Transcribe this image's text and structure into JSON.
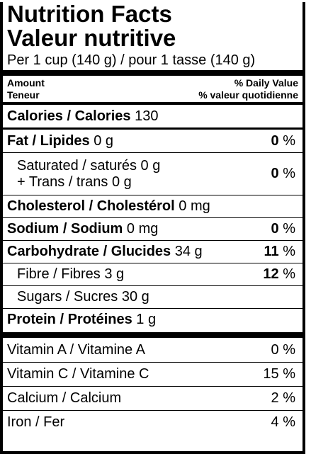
{
  "title_en": "Nutrition Facts",
  "title_fr": "Valeur nutritive",
  "serving": "Per 1 cup (140 g) / pour 1 tasse (140 g)",
  "header": {
    "amount_en": "Amount",
    "amount_fr": "Teneur",
    "dv_en": "% Daily Value",
    "dv_fr": "% valeur quotidienne"
  },
  "calories": {
    "label": "Calories / Calories",
    "value": "130"
  },
  "nutrients": {
    "fat": {
      "label": "Fat / Lipides",
      "amount": "0 g",
      "pct": "0",
      "unit": "%"
    },
    "saturated": {
      "label": "Saturated / saturés",
      "amount": "0 g"
    },
    "trans": {
      "label": "+ Trans / trans",
      "amount": "0 g",
      "pct": "0",
      "unit": "%"
    },
    "cholesterol": {
      "label": "Cholesterol / Cholestérol",
      "amount": "0 mg"
    },
    "sodium": {
      "label": "Sodium / Sodium",
      "amount": "0 mg",
      "pct": "0",
      "unit": "%"
    },
    "carbohydrate": {
      "label": "Carbohydrate / Glucides",
      "amount": "34 g",
      "pct": "11",
      "unit": "%"
    },
    "fibre": {
      "label": "Fibre / Fibres",
      "amount": "3 g",
      "pct": "12",
      "unit": "%"
    },
    "sugars": {
      "label": "Sugars / Sucres",
      "amount": "30 g"
    },
    "protein": {
      "label": "Protein / Protéines",
      "amount": "1 g"
    }
  },
  "vitamins": [
    {
      "label": "Vitamin A / Vitamine A",
      "pct": "0 %"
    },
    {
      "label": "Vitamin C / Vitamine C",
      "pct": "15 %"
    },
    {
      "label": "Calcium / Calcium",
      "pct": "2 %"
    },
    {
      "label": "Iron / Fer",
      "pct": "4 %"
    }
  ]
}
